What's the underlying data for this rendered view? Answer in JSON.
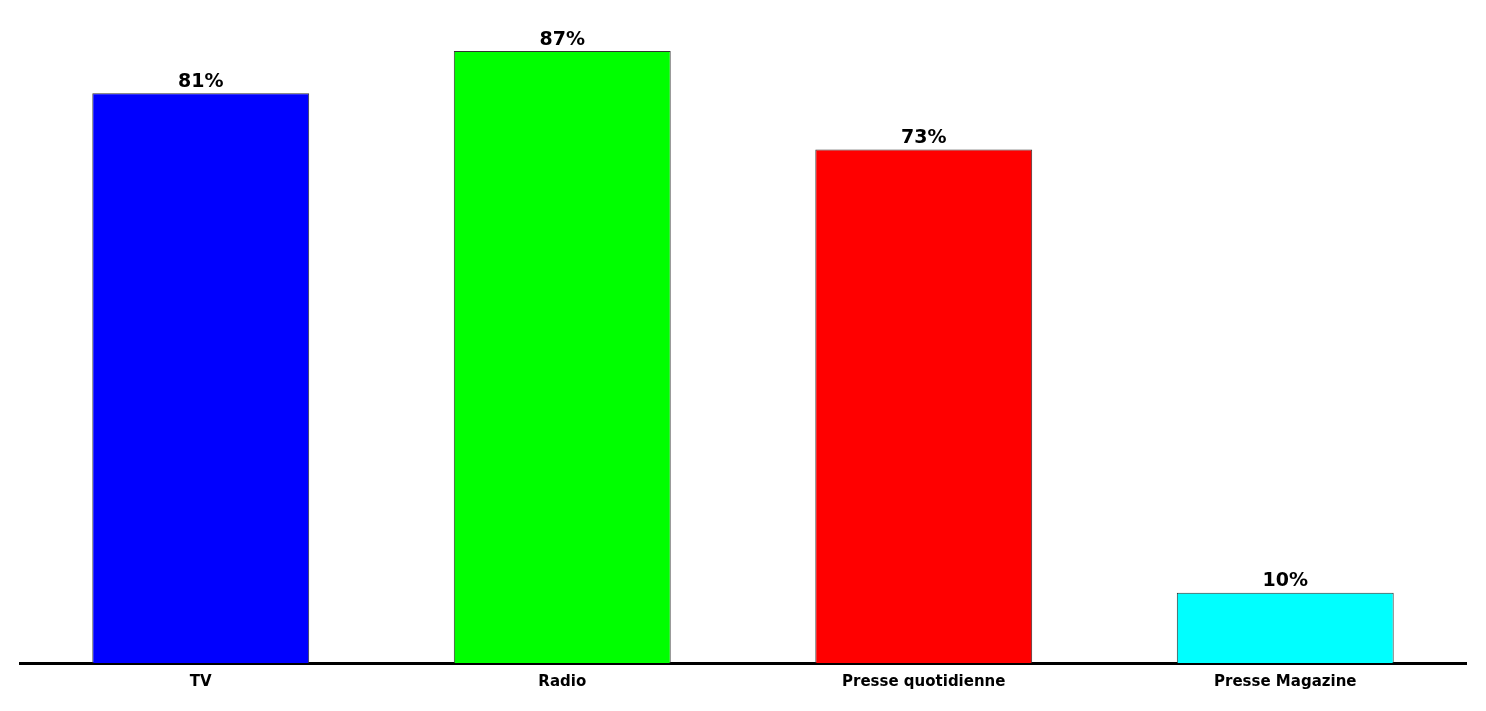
{
  "chart_data": {
    "type": "bar",
    "categories": [
      "TV",
      "Radio",
      "Presse quotidienne",
      "Presse Magazine"
    ],
    "values": [
      81,
      87,
      73,
      10
    ],
    "colors": [
      "#0000ff",
      "#00ff00",
      "#ff0000",
      "#00ffff"
    ],
    "value_labels": [
      "81%",
      "87%",
      "73%",
      "10%"
    ]
  }
}
